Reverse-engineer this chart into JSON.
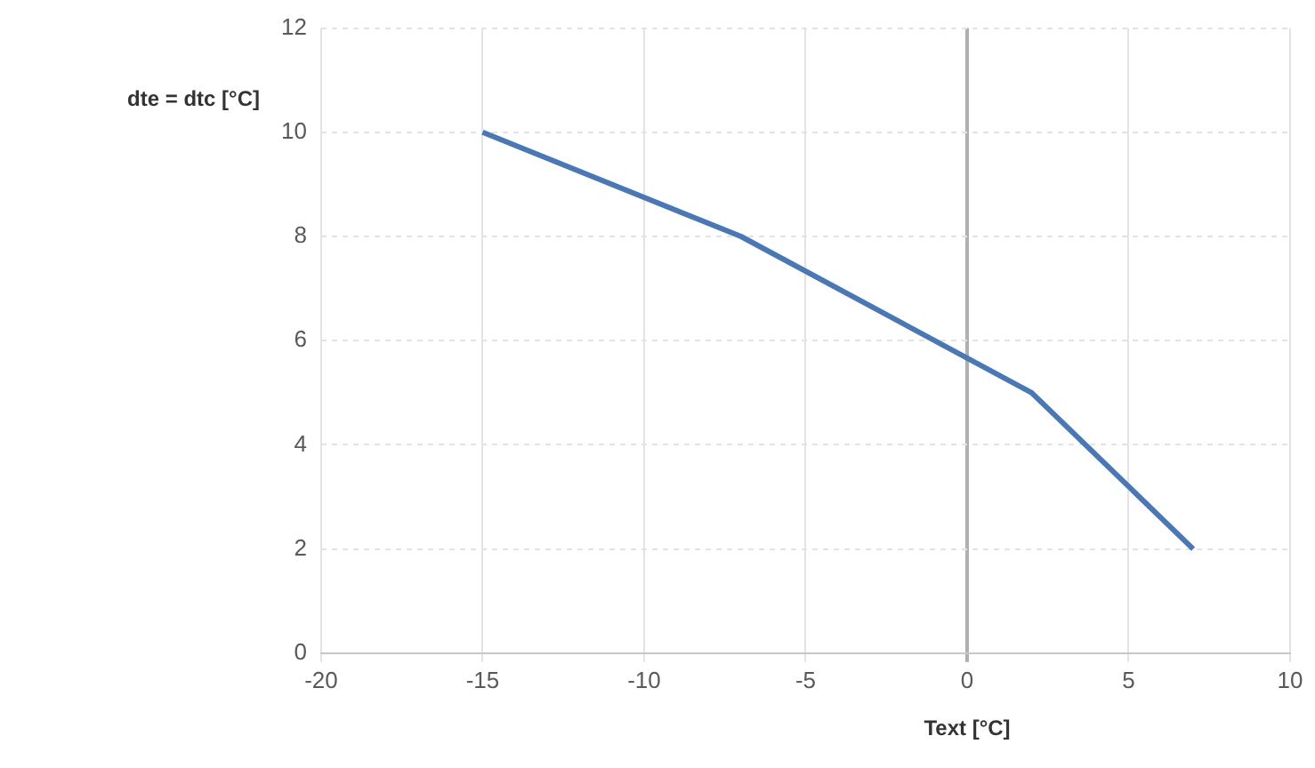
{
  "chart_data": {
    "type": "line",
    "xlabel": "Text [°C]",
    "ylabel": "dte = dtc [°C]",
    "x": [
      -15,
      -7,
      2,
      7
    ],
    "series": [
      {
        "color": "#4a78b4",
        "values": [
          10,
          8,
          5,
          2
        ]
      }
    ],
    "xlim": [
      -20,
      10
    ],
    "xticks": [
      -20,
      -15,
      -10,
      -5,
      0,
      5,
      10
    ],
    "ylim": [
      0,
      12
    ],
    "yticks": [
      0,
      2,
      4,
      6,
      8,
      10,
      12
    ],
    "grid": true,
    "legend": false,
    "marker": "none",
    "line_style": "solid"
  }
}
